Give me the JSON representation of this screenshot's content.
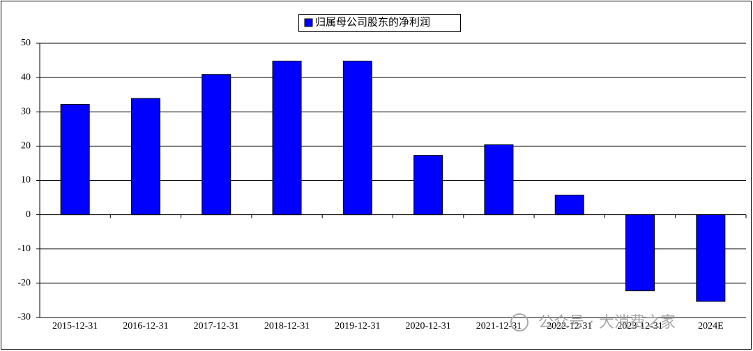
{
  "chart_data": {
    "type": "bar",
    "categories": [
      "2015-12-31",
      "2016-12-31",
      "2017-12-31",
      "2018-12-31",
      "2019-12-31",
      "2020-12-31",
      "2021-12-31",
      "2022-12-31",
      "2023-12-31",
      "2024E"
    ],
    "series": [
      {
        "name": "归属母公司股东的净利润",
        "color": "#0000ff",
        "values": [
          32.2,
          33.9,
          40.9,
          44.8,
          44.8,
          17.3,
          20.4,
          5.7,
          -22.2,
          -25.3
        ]
      }
    ],
    "ylim": [
      -30,
      50
    ],
    "yticks": [
      -30,
      -20,
      -10,
      0,
      10,
      20,
      30,
      40,
      50
    ],
    "grid": true,
    "legend": "top"
  },
  "watermark": "公众号 · 大消费之家"
}
